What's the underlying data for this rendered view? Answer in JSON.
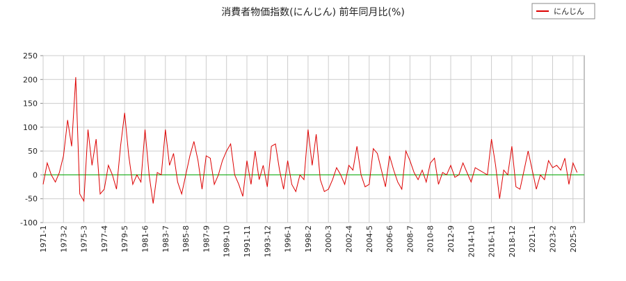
{
  "chart_data": {
    "type": "line",
    "title": "消費者物価指数(にんじん) 前年同月比(%)",
    "categories": [
      "1971-1",
      null,
      null,
      null,
      null,
      "1973-2",
      null,
      null,
      null,
      null,
      "1975-3",
      null,
      null,
      null,
      null,
      "1977-4",
      null,
      null,
      null,
      null,
      "1979-5",
      null,
      null,
      null,
      null,
      "1981-6",
      null,
      null,
      null,
      null,
      "1983-7",
      null,
      null,
      null,
      null,
      "1985-8",
      null,
      null,
      null,
      null,
      "1987-9",
      null,
      null,
      null,
      null,
      "1989-10",
      null,
      null,
      null,
      null,
      "1991-11",
      null,
      null,
      null,
      null,
      "1993-12",
      null,
      null,
      null,
      null,
      "1996-1",
      null,
      null,
      null,
      null,
      "1998-2",
      null,
      null,
      null,
      null,
      "2000-3",
      null,
      null,
      null,
      null,
      "2002-4",
      null,
      null,
      null,
      null,
      "2004-5",
      null,
      null,
      null,
      null,
      "2006-6",
      null,
      null,
      null,
      null,
      "2008-7",
      null,
      null,
      null,
      null,
      "2010-8",
      null,
      null,
      null,
      null,
      "2012-9",
      null,
      null,
      null,
      null,
      "2014-10",
      null,
      null,
      null,
      null,
      "2016-11",
      null,
      null,
      null,
      null,
      "2018-12",
      null,
      null,
      null,
      null,
      "2021-1",
      null,
      null,
      null,
      null,
      "2023-2",
      null,
      null,
      null,
      null,
      "2025-3",
      null
    ],
    "series": [
      {
        "name": "にんじん",
        "color": "#dd0000",
        "values": [
          -20,
          25,
          0,
          -15,
          5,
          40,
          115,
          60,
          205,
          -40,
          -55,
          95,
          20,
          75,
          -40,
          -30,
          20,
          0,
          -30,
          60,
          130,
          40,
          -20,
          0,
          -15,
          95,
          0,
          -60,
          5,
          0,
          95,
          20,
          45,
          -15,
          -40,
          0,
          40,
          70,
          30,
          -30,
          40,
          35,
          -20,
          0,
          30,
          50,
          65,
          0,
          -20,
          -45,
          30,
          -20,
          50,
          -10,
          20,
          -25,
          60,
          65,
          10,
          -30,
          30,
          -20,
          -35,
          0,
          -10,
          95,
          20,
          85,
          -10,
          -35,
          -30,
          -10,
          15,
          0,
          -20,
          20,
          10,
          60,
          0,
          -25,
          -20,
          55,
          45,
          10,
          -25,
          40,
          10,
          -15,
          -30,
          50,
          30,
          5,
          -10,
          10,
          -15,
          25,
          35,
          -20,
          5,
          0,
          20,
          -5,
          0,
          25,
          5,
          -15,
          15,
          10,
          5,
          0,
          75,
          20,
          -50,
          10,
          0,
          60,
          -25,
          -30,
          10,
          50,
          10,
          -30,
          0,
          -10,
          30,
          15,
          20,
          10,
          35,
          -20,
          25,
          5
        ]
      }
    ],
    "ylim": [
      -100,
      250
    ],
    "yticks": [
      -100,
      -50,
      0,
      50,
      100,
      150,
      200,
      250
    ],
    "grid": true,
    "zero_line_color": "#00aa00",
    "legend": "top-right"
  }
}
